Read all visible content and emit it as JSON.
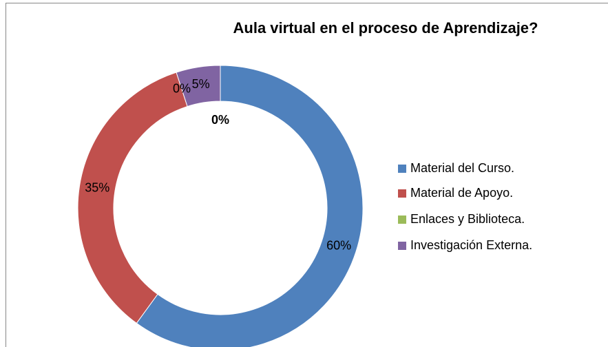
{
  "chart_data": {
    "type": "donut",
    "title": "Aula virtual en el proceso de  Aprendizaje?",
    "categories": [
      "Material del Curso.",
      "Material de Apoyo.",
      "Enlaces y Biblioteca.",
      "Investigación Externa."
    ],
    "values": [
      60,
      35,
      0,
      5
    ],
    "value_labels": [
      "60%",
      "35%",
      "0%",
      "5%"
    ],
    "colors": [
      "#4f81bd",
      "#c0504d",
      "#9bbb59",
      "#8064a2"
    ],
    "center_label": "0%",
    "legend": "right"
  }
}
